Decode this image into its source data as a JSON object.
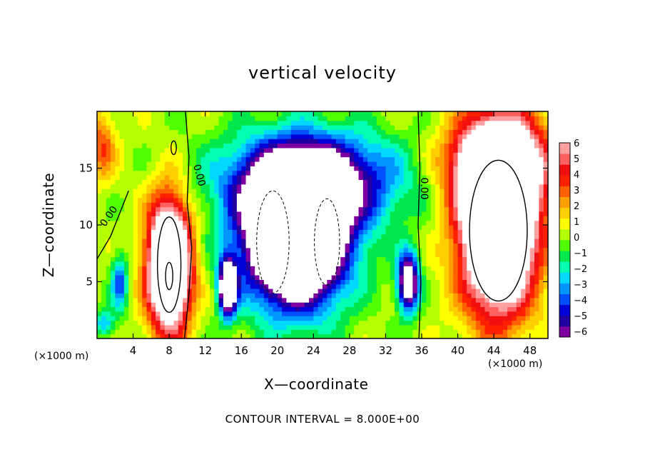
{
  "chart_data": {
    "type": "heatmap",
    "title": "vertical velocity",
    "xlabel": "X—coordinate",
    "ylabel": "Z—coordinate",
    "x_unit_label": "(×1000 m)",
    "x_unit_label_right": "(×1000 m)",
    "xlim": [
      0,
      50
    ],
    "ylim": [
      0,
      20
    ],
    "xticks": [
      4,
      8,
      12,
      16,
      20,
      24,
      28,
      32,
      36,
      40,
      44,
      48
    ],
    "yticks": [
      5,
      10,
      15
    ],
    "colorbar": {
      "ticks": [
        "6",
        "5",
        "4",
        "3",
        "2",
        "1",
        "0",
        "−1",
        "−2",
        "−3",
        "−4",
        "−5",
        "−6"
      ],
      "range": [
        -6,
        6
      ],
      "colors": [
        "#7f00a0",
        "#2000a0",
        "#0000d8",
        "#0050ff",
        "#0096ff",
        "#00d8ff",
        "#00ffb0",
        "#00e84c",
        "#50ff00",
        "#b4ff00",
        "#ffff00",
        "#ffd000",
        "#ffa000",
        "#ff6000",
        "#ff2000",
        "#f01010",
        "#ff6060",
        "#ffa0a0"
      ]
    },
    "contour_labels": [
      "0.00",
      "0.00",
      "0.00"
    ],
    "contour_interval_text": "CONTOUR INTERVAL = 8.000E+00",
    "features": [
      {
        "kind": "updraft",
        "x": 8,
        "z": 6,
        "peak": 6
      },
      {
        "kind": "downdraft",
        "x": 22,
        "z": 9,
        "peak": -6
      },
      {
        "kind": "updraft",
        "x": 44.5,
        "z": 10,
        "peak": 6
      },
      {
        "kind": "downdraft",
        "x": 14.5,
        "z": 4,
        "peak": -6
      },
      {
        "kind": "downdraft",
        "x": 34.5,
        "z": 5,
        "peak": -6
      },
      {
        "kind": "downdraft",
        "x": 2.5,
        "z": 5,
        "peak": -4
      }
    ]
  }
}
